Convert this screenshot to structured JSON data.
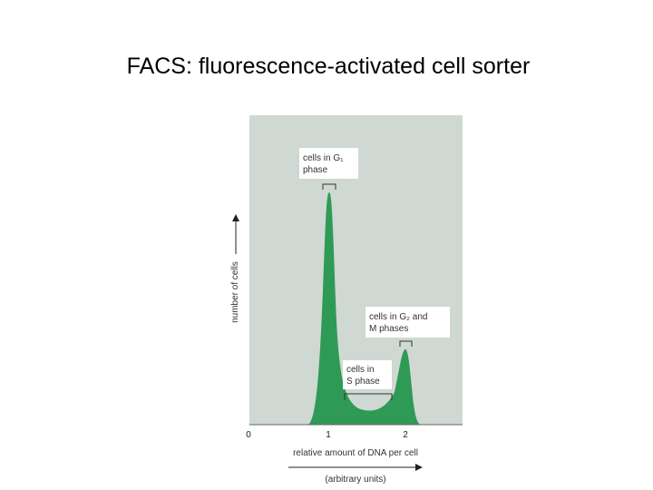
{
  "title": "FACS: fluorescence-activated cell sorter",
  "figure": {
    "y_label": "number of cells",
    "x_label": "relative amount of DNA per cell",
    "x_unit": "(arbitrary units)",
    "x_ticks": [
      "0",
      "1",
      "2"
    ],
    "annotations": [
      {
        "lines": [
          "cells in G₁",
          "phase"
        ]
      },
      {
        "lines": [
          "cells in G₂ and",
          "M phases"
        ]
      },
      {
        "lines": [
          "cells in",
          "S phase"
        ]
      }
    ]
  }
}
